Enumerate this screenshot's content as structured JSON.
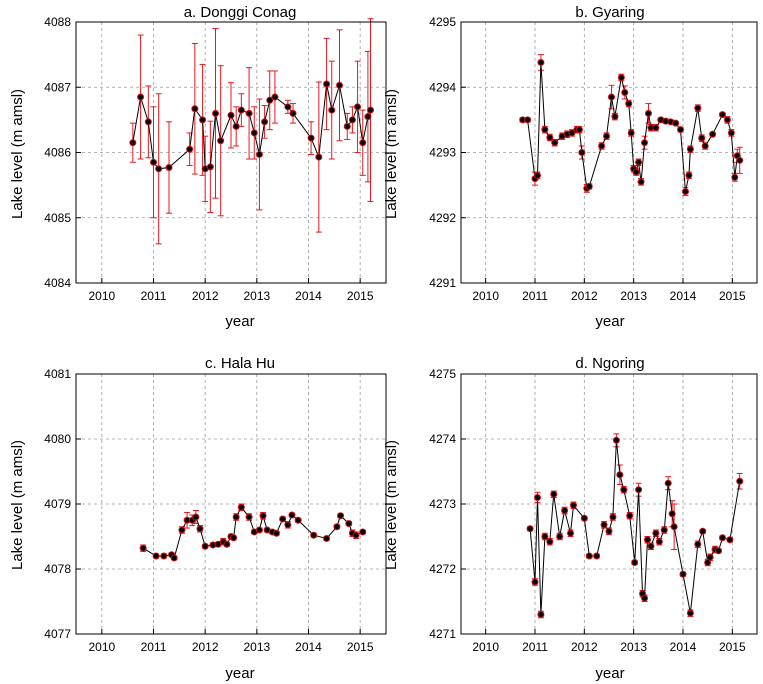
{
  "figure": {
    "panels": [
      {
        "title": "a. Donggi Conag",
        "xlabel": "year",
        "ylabel": "Lake level (m amsl)"
      },
      {
        "title": "b. Gyaring",
        "xlabel": "year",
        "ylabel": "Lake level (m amsl)"
      },
      {
        "title": "c. Hala Hu",
        "xlabel": "year",
        "ylabel": "Lake level (m amsl)"
      },
      {
        "title": "d. Ngoring",
        "xlabel": "year",
        "ylabel": "Lake level (m amsl)"
      }
    ]
  },
  "colors": {
    "line": "#000000",
    "marker": "#000000",
    "errorbar": "#e8181e",
    "marker_edge": "#d01010"
  },
  "chart_data": [
    {
      "type": "scatter",
      "title": "a. Donggi Conag",
      "xlabel": "year",
      "ylabel": "Lake level (m amsl)",
      "xlim": [
        2009.5,
        2015.5
      ],
      "ylim": [
        4084,
        4088
      ],
      "xticks": [
        2010,
        2011,
        2012,
        2013,
        2014,
        2015
      ],
      "yticks": [
        4084,
        4085,
        4086,
        4087,
        4088
      ],
      "grid": true,
      "points": [
        {
          "x": 2010.6,
          "y": 4086.15,
          "err": 0.3
        },
        {
          "x": 2010.75,
          "y": 4086.85,
          "err": 0.95
        },
        {
          "x": 2010.9,
          "y": 4086.47,
          "err": 0.55
        },
        {
          "x": 2011.0,
          "y": 4085.85,
          "err": 0.85
        },
        {
          "x": 2011.1,
          "y": 4085.75,
          "err": 1.15
        },
        {
          "x": 2011.3,
          "y": 4085.77,
          "err": 0.7
        },
        {
          "x": 2011.7,
          "y": 4086.05,
          "err": 0.25
        },
        {
          "x": 2011.8,
          "y": 4086.67,
          "err": 1.0
        },
        {
          "x": 2011.95,
          "y": 4086.5,
          "err": 0.85
        },
        {
          "x": 2012.0,
          "y": 4085.75,
          "err": 0.5
        },
        {
          "x": 2012.1,
          "y": 4085.78,
          "err": 0.7
        },
        {
          "x": 2012.2,
          "y": 4086.6,
          "err": 1.3
        },
        {
          "x": 2012.3,
          "y": 4086.18,
          "err": 1.15
        },
        {
          "x": 2012.5,
          "y": 4086.57,
          "err": 0.5
        },
        {
          "x": 2012.6,
          "y": 4086.4,
          "err": 0.3
        },
        {
          "x": 2012.7,
          "y": 4086.65,
          "err": 0.25
        },
        {
          "x": 2012.85,
          "y": 4086.6,
          "err": 0.7
        },
        {
          "x": 2012.95,
          "y": 4086.3,
          "err": 0.4
        },
        {
          "x": 2013.05,
          "y": 4085.97,
          "err": 0.85
        },
        {
          "x": 2013.15,
          "y": 4086.47,
          "err": 0.25
        },
        {
          "x": 2013.25,
          "y": 4086.8,
          "err": 0.45
        },
        {
          "x": 2013.35,
          "y": 4086.85,
          "err": 0.4
        },
        {
          "x": 2013.6,
          "y": 4086.7,
          "err": 0.1
        },
        {
          "x": 2013.7,
          "y": 4086.6,
          "err": 0.15
        },
        {
          "x": 2014.05,
          "y": 4086.22,
          "err": 0.25
        },
        {
          "x": 2014.2,
          "y": 4085.93,
          "err": 1.15
        },
        {
          "x": 2014.35,
          "y": 4087.05,
          "err": 0.7
        },
        {
          "x": 2014.45,
          "y": 4086.65,
          "err": 0.75
        },
        {
          "x": 2014.6,
          "y": 4087.03,
          "err": 0.85
        },
        {
          "x": 2014.75,
          "y": 4086.4,
          "err": 0.2
        },
        {
          "x": 2014.85,
          "y": 4086.5,
          "err": 0.2
        },
        {
          "x": 2014.95,
          "y": 4086.7,
          "err": 0.7
        },
        {
          "x": 2015.05,
          "y": 4086.15,
          "err": 0.5
        },
        {
          "x": 2015.15,
          "y": 4086.55,
          "err": 1.0
        },
        {
          "x": 2015.2,
          "y": 4086.65,
          "err": 1.4
        }
      ]
    },
    {
      "type": "scatter",
      "title": "b. Gyaring",
      "xlabel": "year",
      "ylabel": "Lake level (m amsl)",
      "xlim": [
        2009.5,
        2015.5
      ],
      "ylim": [
        4291,
        4295
      ],
      "xticks": [
        2010,
        2011,
        2012,
        2013,
        2014,
        2015
      ],
      "yticks": [
        4291,
        4292,
        4293,
        4294,
        4295
      ],
      "grid": true,
      "points": [
        {
          "x": 2010.75,
          "y": 4293.5,
          "err": 0.03
        },
        {
          "x": 2010.85,
          "y": 4293.5,
          "err": 0.03
        },
        {
          "x": 2011.0,
          "y": 4292.6,
          "err": 0.1
        },
        {
          "x": 2011.05,
          "y": 4292.65,
          "err": 0.05
        },
        {
          "x": 2011.12,
          "y": 4294.38,
          "err": 0.12
        },
        {
          "x": 2011.2,
          "y": 4293.35,
          "err": 0.05
        },
        {
          "x": 2011.3,
          "y": 4293.23,
          "err": 0.05
        },
        {
          "x": 2011.4,
          "y": 4293.15,
          "err": 0.05
        },
        {
          "x": 2011.55,
          "y": 4293.25,
          "err": 0.05
        },
        {
          "x": 2011.65,
          "y": 4293.28,
          "err": 0.05
        },
        {
          "x": 2011.75,
          "y": 4293.3,
          "err": 0.05
        },
        {
          "x": 2011.85,
          "y": 4293.35,
          "err": 0.05
        },
        {
          "x": 2011.9,
          "y": 4293.35,
          "err": 0.05
        },
        {
          "x": 2011.95,
          "y": 4293.0,
          "err": 0.1
        },
        {
          "x": 2012.05,
          "y": 4292.45,
          "err": 0.06
        },
        {
          "x": 2012.1,
          "y": 4292.48,
          "err": 0.04
        },
        {
          "x": 2012.35,
          "y": 4293.1,
          "err": 0.05
        },
        {
          "x": 2012.45,
          "y": 4293.25,
          "err": 0.05
        },
        {
          "x": 2012.55,
          "y": 4293.85,
          "err": 0.18
        },
        {
          "x": 2012.62,
          "y": 4293.55,
          "err": 0.05
        },
        {
          "x": 2012.75,
          "y": 4294.15,
          "err": 0.05
        },
        {
          "x": 2012.82,
          "y": 4293.92,
          "err": 0.1
        },
        {
          "x": 2012.9,
          "y": 4293.75,
          "err": 0.05
        },
        {
          "x": 2012.95,
          "y": 4293.3,
          "err": 0.05
        },
        {
          "x": 2013.0,
          "y": 4292.75,
          "err": 0.05
        },
        {
          "x": 2013.05,
          "y": 4292.7,
          "err": 0.05
        },
        {
          "x": 2013.1,
          "y": 4292.85,
          "err": 0.05
        },
        {
          "x": 2013.15,
          "y": 4292.55,
          "err": 0.05
        },
        {
          "x": 2013.22,
          "y": 4293.15,
          "err": 0.1
        },
        {
          "x": 2013.3,
          "y": 4293.6,
          "err": 0.15
        },
        {
          "x": 2013.35,
          "y": 4293.38,
          "err": 0.05
        },
        {
          "x": 2013.45,
          "y": 4293.38,
          "err": 0.05
        },
        {
          "x": 2013.55,
          "y": 4293.5,
          "err": 0.03
        },
        {
          "x": 2013.65,
          "y": 4293.48,
          "err": 0.03
        },
        {
          "x": 2013.75,
          "y": 4293.47,
          "err": 0.03
        },
        {
          "x": 2013.85,
          "y": 4293.45,
          "err": 0.03
        },
        {
          "x": 2013.95,
          "y": 4293.35,
          "err": 0.03
        },
        {
          "x": 2014.05,
          "y": 4292.4,
          "err": 0.06
        },
        {
          "x": 2014.12,
          "y": 4292.65,
          "err": 0.05
        },
        {
          "x": 2014.15,
          "y": 4293.05,
          "err": 0.05
        },
        {
          "x": 2014.3,
          "y": 4293.68,
          "err": 0.05
        },
        {
          "x": 2014.38,
          "y": 4293.22,
          "err": 0.05
        },
        {
          "x": 2014.45,
          "y": 4293.1,
          "err": 0.05
        },
        {
          "x": 2014.6,
          "y": 4293.28,
          "err": 0.03
        },
        {
          "x": 2014.8,
          "y": 4293.58,
          "err": 0.03
        },
        {
          "x": 2014.9,
          "y": 4293.5,
          "err": 0.05
        },
        {
          "x": 2014.98,
          "y": 4293.3,
          "err": 0.05
        },
        {
          "x": 2015.05,
          "y": 4292.62,
          "err": 0.06
        },
        {
          "x": 2015.1,
          "y": 4292.95,
          "err": 0.1
        },
        {
          "x": 2015.15,
          "y": 4292.88,
          "err": 0.2
        }
      ]
    },
    {
      "type": "scatter",
      "title": "c. Hala Hu",
      "xlabel": "year",
      "ylabel": "Lake level (m amsl)",
      "xlim": [
        2009.5,
        2015.5
      ],
      "ylim": [
        4077,
        4081
      ],
      "xticks": [
        2010,
        2011,
        2012,
        2013,
        2014,
        2015
      ],
      "yticks": [
        4077,
        4078,
        4079,
        4080,
        4081
      ],
      "grid": true,
      "points": [
        {
          "x": 2010.8,
          "y": 4078.32,
          "err": 0.05
        },
        {
          "x": 2011.05,
          "y": 4078.2,
          "err": 0.03
        },
        {
          "x": 2011.2,
          "y": 4078.2,
          "err": 0.03
        },
        {
          "x": 2011.35,
          "y": 4078.22,
          "err": 0.03
        },
        {
          "x": 2011.4,
          "y": 4078.17,
          "err": 0.03
        },
        {
          "x": 2011.55,
          "y": 4078.6,
          "err": 0.05
        },
        {
          "x": 2011.65,
          "y": 4078.75,
          "err": 0.12
        },
        {
          "x": 2011.75,
          "y": 4078.75,
          "err": 0.08
        },
        {
          "x": 2011.82,
          "y": 4078.8,
          "err": 0.1
        },
        {
          "x": 2011.9,
          "y": 4078.62,
          "err": 0.05
        },
        {
          "x": 2012.0,
          "y": 4078.35,
          "err": 0.03
        },
        {
          "x": 2012.15,
          "y": 4078.37,
          "err": 0.03
        },
        {
          "x": 2012.25,
          "y": 4078.38,
          "err": 0.03
        },
        {
          "x": 2012.35,
          "y": 4078.42,
          "err": 0.05
        },
        {
          "x": 2012.42,
          "y": 4078.38,
          "err": 0.03
        },
        {
          "x": 2012.5,
          "y": 4078.5,
          "err": 0.03
        },
        {
          "x": 2012.55,
          "y": 4078.48,
          "err": 0.03
        },
        {
          "x": 2012.6,
          "y": 4078.8,
          "err": 0.05
        },
        {
          "x": 2012.7,
          "y": 4078.95,
          "err": 0.05
        },
        {
          "x": 2012.85,
          "y": 4078.8,
          "err": 0.05
        },
        {
          "x": 2012.95,
          "y": 4078.57,
          "err": 0.03
        },
        {
          "x": 2013.05,
          "y": 4078.6,
          "err": 0.03
        },
        {
          "x": 2013.12,
          "y": 4078.82,
          "err": 0.05
        },
        {
          "x": 2013.2,
          "y": 4078.6,
          "err": 0.03
        },
        {
          "x": 2013.3,
          "y": 4078.57,
          "err": 0.03
        },
        {
          "x": 2013.38,
          "y": 4078.55,
          "err": 0.03
        },
        {
          "x": 2013.5,
          "y": 4078.77,
          "err": 0.03
        },
        {
          "x": 2013.6,
          "y": 4078.68,
          "err": 0.05
        },
        {
          "x": 2013.68,
          "y": 4078.83,
          "err": 0.03
        },
        {
          "x": 2013.8,
          "y": 4078.75,
          "err": 0.03
        },
        {
          "x": 2014.1,
          "y": 4078.52,
          "err": 0.03
        },
        {
          "x": 2014.35,
          "y": 4078.47,
          "err": 0.03
        },
        {
          "x": 2014.55,
          "y": 4078.65,
          "err": 0.03
        },
        {
          "x": 2014.62,
          "y": 4078.82,
          "err": 0.03
        },
        {
          "x": 2014.78,
          "y": 4078.7,
          "err": 0.03
        },
        {
          "x": 2014.85,
          "y": 4078.55,
          "err": 0.05
        },
        {
          "x": 2014.92,
          "y": 4078.52,
          "err": 0.05
        },
        {
          "x": 2015.05,
          "y": 4078.57,
          "err": 0.03
        }
      ]
    },
    {
      "type": "scatter",
      "title": "d. Ngoring",
      "xlabel": "year",
      "ylabel": "Lake level (m amsl)",
      "xlim": [
        2009.5,
        2015.5
      ],
      "ylim": [
        4271,
        4275
      ],
      "xticks": [
        2010,
        2011,
        2012,
        2013,
        2014,
        2015
      ],
      "yticks": [
        4271,
        4272,
        4273,
        4274,
        4275
      ],
      "grid": true,
      "points": [
        {
          "x": 2010.9,
          "y": 4272.62,
          "err": 0.03
        },
        {
          "x": 2011.0,
          "y": 4271.8,
          "err": 0.05
        },
        {
          "x": 2011.05,
          "y": 4273.1,
          "err": 0.08
        },
        {
          "x": 2011.12,
          "y": 4271.3,
          "err": 0.05
        },
        {
          "x": 2011.2,
          "y": 4272.5,
          "err": 0.05
        },
        {
          "x": 2011.3,
          "y": 4272.42,
          "err": 0.05
        },
        {
          "x": 2011.38,
          "y": 4273.15,
          "err": 0.05
        },
        {
          "x": 2011.5,
          "y": 4272.5,
          "err": 0.05
        },
        {
          "x": 2011.6,
          "y": 4272.9,
          "err": 0.05
        },
        {
          "x": 2011.72,
          "y": 4272.55,
          "err": 0.05
        },
        {
          "x": 2011.78,
          "y": 4272.98,
          "err": 0.05
        },
        {
          "x": 2012.0,
          "y": 4272.78,
          "err": 0.03
        },
        {
          "x": 2012.1,
          "y": 4272.2,
          "err": 0.03
        },
        {
          "x": 2012.25,
          "y": 4272.2,
          "err": 0.03
        },
        {
          "x": 2012.4,
          "y": 4272.68,
          "err": 0.05
        },
        {
          "x": 2012.5,
          "y": 4272.58,
          "err": 0.05
        },
        {
          "x": 2012.58,
          "y": 4272.8,
          "err": 0.05
        },
        {
          "x": 2012.65,
          "y": 4273.98,
          "err": 0.1
        },
        {
          "x": 2012.72,
          "y": 4273.45,
          "err": 0.15
        },
        {
          "x": 2012.8,
          "y": 4273.22,
          "err": 0.05
        },
        {
          "x": 2012.92,
          "y": 4272.82,
          "err": 0.05
        },
        {
          "x": 2013.02,
          "y": 4272.1,
          "err": 0.03
        },
        {
          "x": 2013.1,
          "y": 4273.22,
          "err": 0.1
        },
        {
          "x": 2013.18,
          "y": 4271.62,
          "err": 0.05
        },
        {
          "x": 2013.22,
          "y": 4271.55,
          "err": 0.05
        },
        {
          "x": 2013.28,
          "y": 4272.45,
          "err": 0.05
        },
        {
          "x": 2013.35,
          "y": 4272.35,
          "err": 0.05
        },
        {
          "x": 2013.45,
          "y": 4272.55,
          "err": 0.05
        },
        {
          "x": 2013.52,
          "y": 4272.42,
          "err": 0.05
        },
        {
          "x": 2013.62,
          "y": 4272.6,
          "err": 0.05
        },
        {
          "x": 2013.7,
          "y": 4273.32,
          "err": 0.1
        },
        {
          "x": 2013.78,
          "y": 4272.85,
          "err": 0.2
        },
        {
          "x": 2013.82,
          "y": 4272.65,
          "err": 0.35
        },
        {
          "x": 2014.0,
          "y": 4271.92,
          "err": 0.03
        },
        {
          "x": 2014.15,
          "y": 4271.32,
          "err": 0.05
        },
        {
          "x": 2014.3,
          "y": 4272.38,
          "err": 0.05
        },
        {
          "x": 2014.4,
          "y": 4272.58,
          "err": 0.03
        },
        {
          "x": 2014.5,
          "y": 4272.1,
          "err": 0.05
        },
        {
          "x": 2014.55,
          "y": 4272.18,
          "err": 0.05
        },
        {
          "x": 2014.65,
          "y": 4272.3,
          "err": 0.05
        },
        {
          "x": 2014.72,
          "y": 4272.28,
          "err": 0.03
        },
        {
          "x": 2014.8,
          "y": 4272.48,
          "err": 0.03
        },
        {
          "x": 2014.95,
          "y": 4272.45,
          "err": 0.03
        },
        {
          "x": 2015.15,
          "y": 4273.35,
          "err": 0.12
        }
      ]
    }
  ]
}
